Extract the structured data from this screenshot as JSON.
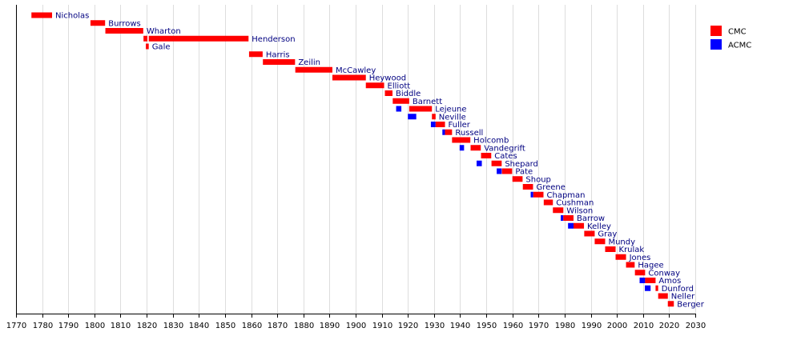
{
  "chart_data": {
    "type": "timeline",
    "title": "",
    "xlabel": "",
    "ylabel": "",
    "xlim": [
      1770,
      2030
    ],
    "x_ticks": [
      1770,
      1780,
      1790,
      1800,
      1810,
      1820,
      1830,
      1840,
      1850,
      1860,
      1870,
      1880,
      1890,
      1900,
      1910,
      1920,
      1930,
      1940,
      1950,
      1960,
      1970,
      1980,
      1990,
      2000,
      2010,
      2020,
      2030
    ],
    "grid": true,
    "legend_position": "top-right",
    "legend": [
      {
        "name": "CMC",
        "color": "#ff0000"
      },
      {
        "name": "ACMC",
        "color": "#0000ff"
      }
    ],
    "rows": [
      {
        "label": "Nicholas",
        "terms": [
          {
            "role": "CMC",
            "start": 1775.9,
            "end": 1783.8
          }
        ]
      },
      {
        "label": "Burrows",
        "terms": [
          {
            "role": "CMC",
            "start": 1798.5,
            "end": 1804.1
          }
        ]
      },
      {
        "label": "Wharton",
        "terms": [
          {
            "role": "CMC",
            "start": 1804.2,
            "end": 1818.7
          }
        ]
      },
      {
        "label": "Henderson",
        "terms": [
          {
            "role": "CMC",
            "start": 1818.8,
            "end": 1820.3
          },
          {
            "role": "CMC",
            "start": 1820.8,
            "end": 1859.0
          }
        ]
      },
      {
        "label": "Gale",
        "terms": [
          {
            "role": "CMC",
            "start": 1819.7,
            "end": 1820.8
          }
        ]
      },
      {
        "label": "Harris",
        "terms": [
          {
            "role": "CMC",
            "start": 1859.2,
            "end": 1864.4
          }
        ]
      },
      {
        "label": "Zeilin",
        "terms": [
          {
            "role": "CMC",
            "start": 1864.5,
            "end": 1876.8
          }
        ]
      },
      {
        "label": "McCawley",
        "terms": [
          {
            "role": "CMC",
            "start": 1876.9,
            "end": 1891.1
          }
        ]
      },
      {
        "label": "Heywood",
        "terms": [
          {
            "role": "CMC",
            "start": 1891.1,
            "end": 1903.9
          }
        ]
      },
      {
        "label": "Elliott",
        "terms": [
          {
            "role": "CMC",
            "start": 1903.9,
            "end": 1910.9
          }
        ]
      },
      {
        "label": "Biddle",
        "terms": [
          {
            "role": "CMC",
            "start": 1911.2,
            "end": 1914.1
          }
        ]
      },
      {
        "label": "Barnett",
        "terms": [
          {
            "role": "CMC",
            "start": 1914.2,
            "end": 1920.5
          }
        ]
      },
      {
        "label": "Lejeune",
        "terms": [
          {
            "role": "ACMC",
            "start": 1915.5,
            "end": 1917.5
          },
          {
            "role": "CMC",
            "start": 1920.5,
            "end": 1929.2
          }
        ]
      },
      {
        "label": "Neville",
        "terms": [
          {
            "role": "ACMC",
            "start": 1920.0,
            "end": 1923.2
          },
          {
            "role": "CMC",
            "start": 1929.2,
            "end": 1930.6
          }
        ]
      },
      {
        "label": "Fuller",
        "terms": [
          {
            "role": "ACMC",
            "start": 1928.8,
            "end": 1930.6
          },
          {
            "role": "CMC",
            "start": 1930.6,
            "end": 1934.2
          }
        ]
      },
      {
        "label": "Russell",
        "terms": [
          {
            "role": "ACMC",
            "start": 1933.2,
            "end": 1934.2
          },
          {
            "role": "CMC",
            "start": 1934.2,
            "end": 1936.9
          }
        ]
      },
      {
        "label": "Holcomb",
        "terms": [
          {
            "role": "CMC",
            "start": 1936.9,
            "end": 1943.9
          }
        ]
      },
      {
        "label": "Vandegrift",
        "terms": [
          {
            "role": "ACMC",
            "start": 1939.8,
            "end": 1941.5
          },
          {
            "role": "CMC",
            "start": 1944.0,
            "end": 1947.9
          }
        ]
      },
      {
        "label": "Cates",
        "terms": [
          {
            "role": "CMC",
            "start": 1948.0,
            "end": 1951.9
          }
        ]
      },
      {
        "label": "Shepard",
        "terms": [
          {
            "role": "ACMC",
            "start": 1946.3,
            "end": 1948.3
          },
          {
            "role": "CMC",
            "start": 1952.0,
            "end": 1955.9
          }
        ]
      },
      {
        "label": "Pate",
        "terms": [
          {
            "role": "ACMC",
            "start": 1954.0,
            "end": 1955.9
          },
          {
            "role": "CMC",
            "start": 1956.0,
            "end": 1959.9
          }
        ]
      },
      {
        "label": "Shoup",
        "terms": [
          {
            "role": "CMC",
            "start": 1960.0,
            "end": 1963.9
          }
        ]
      },
      {
        "label": "Greene",
        "terms": [
          {
            "role": "CMC",
            "start": 1964.0,
            "end": 1967.9
          }
        ]
      },
      {
        "label": "Chapman",
        "terms": [
          {
            "role": "ACMC",
            "start": 1967.0,
            "end": 1968.0
          },
          {
            "role": "CMC",
            "start": 1968.0,
            "end": 1971.9
          }
        ]
      },
      {
        "label": "Cushman",
        "terms": [
          {
            "role": "CMC",
            "start": 1972.0,
            "end": 1975.5
          }
        ]
      },
      {
        "label": "Wilson",
        "terms": [
          {
            "role": "CMC",
            "start": 1975.5,
            "end": 1979.5
          }
        ]
      },
      {
        "label": "Barrow",
        "terms": [
          {
            "role": "ACMC",
            "start": 1978.5,
            "end": 1979.5
          },
          {
            "role": "CMC",
            "start": 1979.5,
            "end": 1983.4
          }
        ]
      },
      {
        "label": "Kelley",
        "terms": [
          {
            "role": "ACMC",
            "start": 1981.3,
            "end": 1983.4
          },
          {
            "role": "CMC",
            "start": 1983.4,
            "end": 1987.4
          }
        ]
      },
      {
        "label": "Gray",
        "terms": [
          {
            "role": "CMC",
            "start": 1987.5,
            "end": 1991.5
          }
        ]
      },
      {
        "label": "Mundy",
        "terms": [
          {
            "role": "CMC",
            "start": 1991.5,
            "end": 1995.5
          }
        ]
      },
      {
        "label": "Krulak",
        "terms": [
          {
            "role": "CMC",
            "start": 1995.5,
            "end": 1999.5
          }
        ]
      },
      {
        "label": "Jones",
        "terms": [
          {
            "role": "CMC",
            "start": 1999.5,
            "end": 2003.5
          }
        ]
      },
      {
        "label": "Hagee",
        "terms": [
          {
            "role": "CMC",
            "start": 2003.5,
            "end": 2006.8
          }
        ]
      },
      {
        "label": "Conway",
        "terms": [
          {
            "role": "CMC",
            "start": 2006.9,
            "end": 2010.8
          }
        ]
      },
      {
        "label": "Amos",
        "terms": [
          {
            "role": "ACMC",
            "start": 2008.7,
            "end": 2010.8
          },
          {
            "role": "CMC",
            "start": 2010.8,
            "end": 2014.8
          }
        ]
      },
      {
        "label": "Dunford",
        "terms": [
          {
            "role": "ACMC",
            "start": 2010.7,
            "end": 2012.9
          },
          {
            "role": "CMC",
            "start": 2014.8,
            "end": 2015.8
          }
        ]
      },
      {
        "label": "Neller",
        "terms": [
          {
            "role": "CMC",
            "start": 2015.8,
            "end": 2019.5
          }
        ]
      },
      {
        "label": "Berger",
        "terms": [
          {
            "role": "CMC",
            "start": 2019.5,
            "end": 2021.8
          }
        ]
      }
    ]
  }
}
